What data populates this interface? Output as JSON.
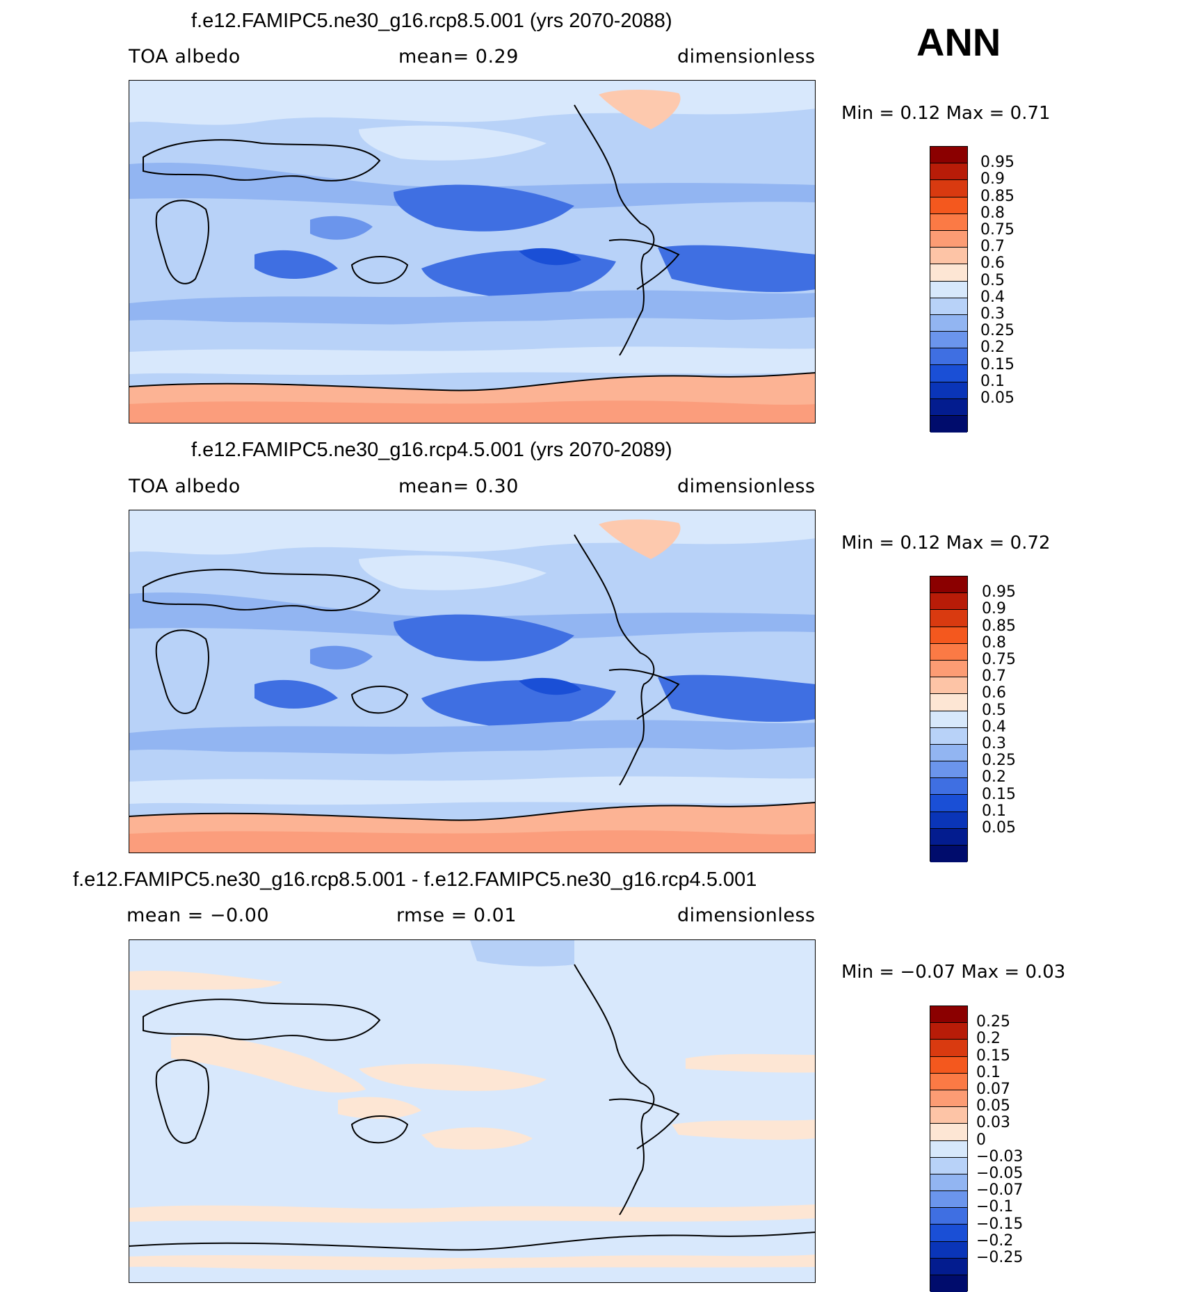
{
  "season": "ANN",
  "panels": [
    {
      "title": "f.e12.FAMIPC5.ne30_g16.rcp8.5.001 (yrs 2070-2088)",
      "left_label": "TOA albedo",
      "center_label": "mean=    0.29",
      "right_label": "dimensionless",
      "minmax": "Min =    0.12  Max =    0.71",
      "levels": [
        "0.95",
        "0.9",
        "0.85",
        "0.8",
        "0.75",
        "0.7",
        "0.6",
        "0.5",
        "0.4",
        "0.3",
        "0.25",
        "0.2",
        "0.15",
        "0.1",
        "0.05"
      ]
    },
    {
      "title": "f.e12.FAMIPC5.ne30_g16.rcp4.5.001 (yrs 2070-2089)",
      "left_label": "TOA albedo",
      "center_label": "mean=    0.30",
      "right_label": "dimensionless",
      "minmax": "Min =    0.12  Max =    0.72",
      "levels": [
        "0.95",
        "0.9",
        "0.85",
        "0.8",
        "0.75",
        "0.7",
        "0.6",
        "0.5",
        "0.4",
        "0.3",
        "0.25",
        "0.2",
        "0.15",
        "0.1",
        "0.05"
      ]
    },
    {
      "title": "f.e12.FAMIPC5.ne30_g16.rcp8.5.001 - f.e12.FAMIPC5.ne30_g16.rcp4.5.001",
      "left_label": "mean =   −0.00",
      "center_label": "rmse =    0.01",
      "right_label": "dimensionless",
      "minmax": "Min =   −0.07  Max =    0.03",
      "levels": [
        "0.25",
        "0.2",
        "0.15",
        "0.1",
        "0.07",
        "0.05",
        "0.03",
        "0",
        "−0.03",
        "−0.05",
        "−0.07",
        "−0.1",
        "−0.15",
        "−0.2",
        "−0.25"
      ]
    }
  ],
  "colors": {
    "ramp": [
      "#8b0000",
      "#b81c08",
      "#d93a10",
      "#f4581e",
      "#fb7a45",
      "#fc9c74",
      "#fdc4a6",
      "#fde6d4",
      "#d7e8fb",
      "#b8d2f8",
      "#92b5f2",
      "#6b95ec",
      "#3f6fe2",
      "#1a4fd6",
      "#0a35b8",
      "#031c8f",
      "#000c6c"
    ],
    "ocean_deep": "#3a67e0",
    "ocean_mid": "#6d95ec",
    "ocean_light": "#b5cff7",
    "pale": "#d8e8fc",
    "ice": "#fcb394",
    "greenland": "#fdc9ae",
    "diff_bg": "#d8e8fc",
    "diff_pos": "#fde6d4",
    "diff_neg": "#b6d0f7"
  },
  "icons": {
    "coastlines": "coastline-outline-icon"
  }
}
